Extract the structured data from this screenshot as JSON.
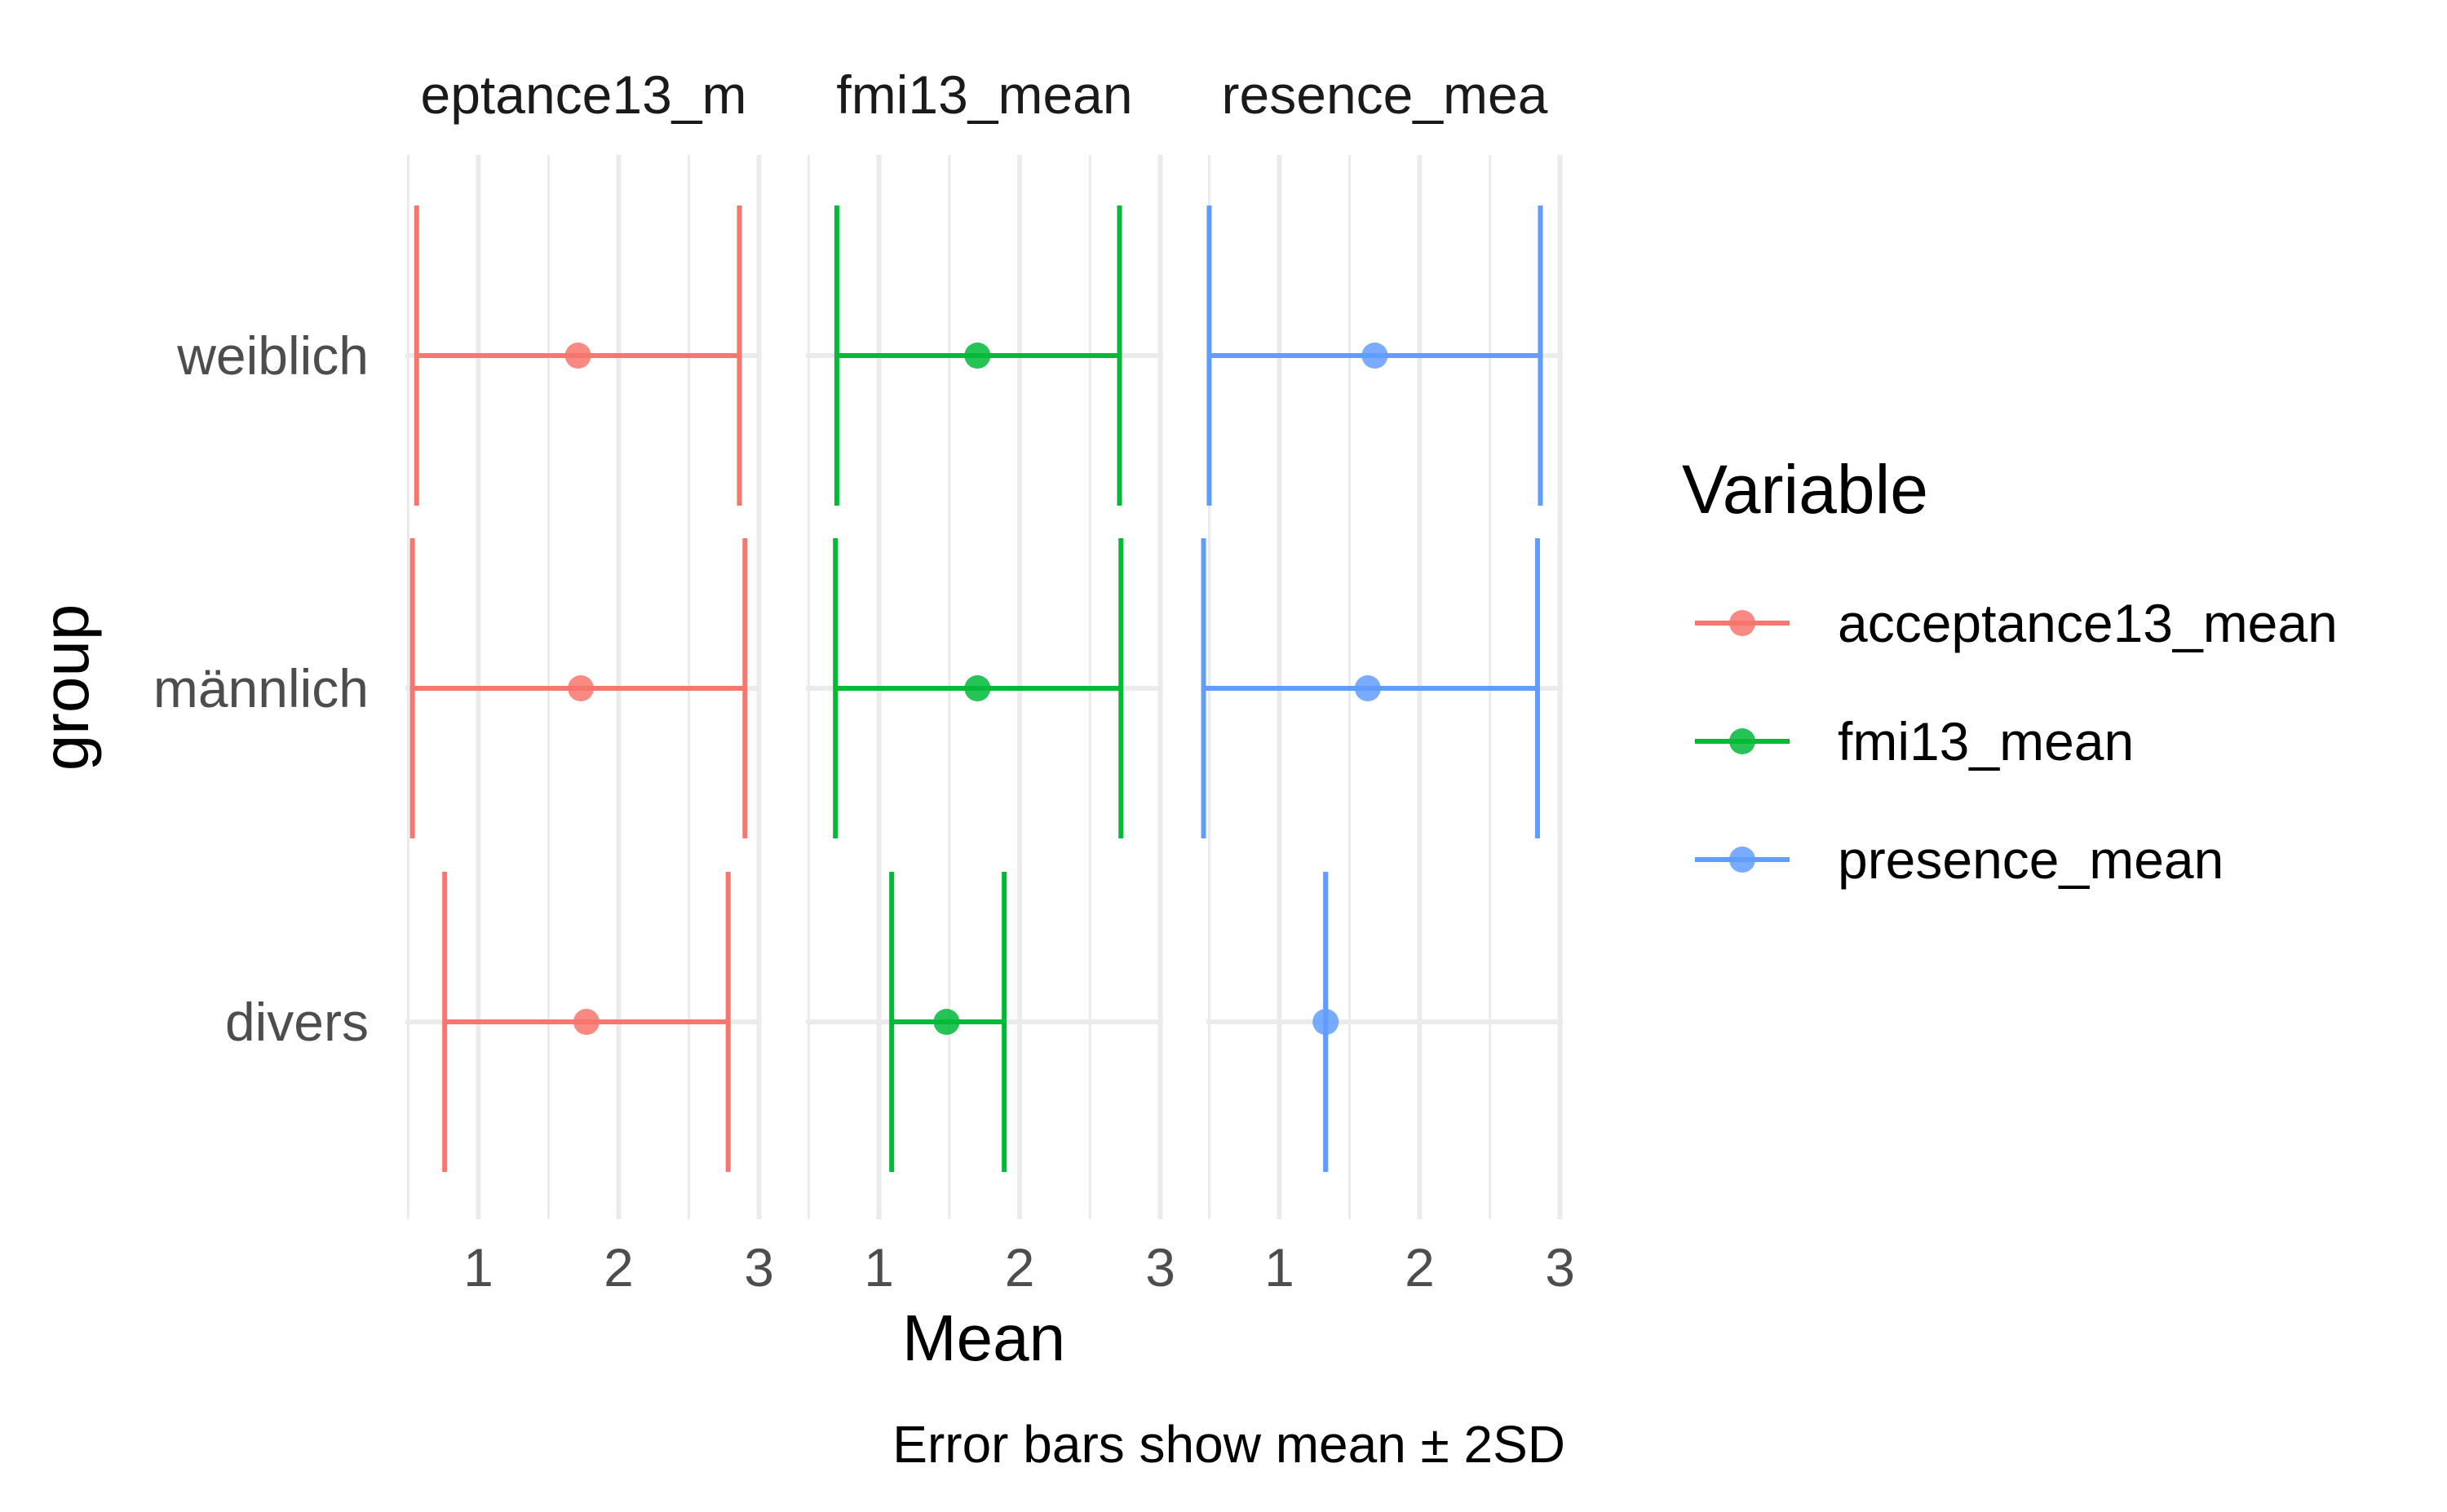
{
  "chart_data": {
    "type": "errorbar",
    "facets": [
      "acceptance13_mean",
      "fmi13_mean",
      "presence_mean"
    ],
    "facet_labels_shown": [
      "eptance13_m",
      "fmi13_mean",
      "resence_mea"
    ],
    "groups": [
      "weiblich",
      "männlich",
      "divers"
    ],
    "x_ticks": [
      "1",
      "2",
      "3"
    ],
    "xlim": [
      0.48,
      3.02
    ],
    "xlabel": "Mean",
    "ylabel": "group",
    "caption": "Error bars show mean ± 2SD",
    "legend": {
      "title": "Variable",
      "position": "right",
      "items": [
        {
          "label": "acceptance13_mean",
          "color": "#F8766D"
        },
        {
          "label": "fmi13_mean",
          "color": "#00BA38"
        },
        {
          "label": "presence_mean",
          "color": "#619CFF"
        }
      ]
    },
    "series": [
      {
        "name": "acceptance13_mean",
        "color": "#F8766D",
        "points": [
          {
            "group": "weiblich",
            "mean": 1.71,
            "lower": 0.56,
            "upper": 2.86
          },
          {
            "group": "männlich",
            "mean": 1.73,
            "lower": 0.53,
            "upper": 2.9
          },
          {
            "group": "divers",
            "mean": 1.77,
            "lower": 0.76,
            "upper": 2.78
          }
        ]
      },
      {
        "name": "fmi13_mean",
        "color": "#00BA38",
        "points": [
          {
            "group": "weiblich",
            "mean": 1.7,
            "lower": 0.7,
            "upper": 2.71
          },
          {
            "group": "männlich",
            "mean": 1.7,
            "lower": 0.69,
            "upper": 2.72
          },
          {
            "group": "divers",
            "mean": 1.48,
            "lower": 1.09,
            "upper": 1.89
          }
        ]
      },
      {
        "name": "presence_mean",
        "color": "#619CFF",
        "points": [
          {
            "group": "weiblich",
            "mean": 1.68,
            "lower": 0.5,
            "upper": 2.86
          },
          {
            "group": "männlich",
            "mean": 1.63,
            "lower": 0.46,
            "upper": 2.84
          },
          {
            "group": "divers",
            "mean": 1.33,
            "lower": 1.33,
            "upper": 1.33
          }
        ]
      }
    ]
  }
}
